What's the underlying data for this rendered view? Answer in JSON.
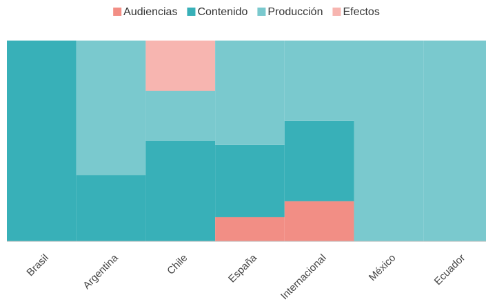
{
  "chart_data": {
    "type": "stacked_bar_100",
    "categories": [
      "Brasil",
      "Argentina",
      "Chile",
      "España",
      "Internacional",
      "México",
      "Ecuador"
    ],
    "series": [
      {
        "name": "Audiencias",
        "color": "#f28e85",
        "values": [
          0,
          0,
          0,
          12,
          20,
          0,
          0
        ]
      },
      {
        "name": "Contenido",
        "color": "#38b0b8",
        "values": [
          100,
          33,
          50,
          36,
          40,
          0,
          0
        ]
      },
      {
        "name": "Producción",
        "color": "#7ac9ce",
        "values": [
          0,
          67,
          25,
          52,
          40,
          100,
          100
        ]
      },
      {
        "name": "Efectos",
        "color": "#f7b5b0",
        "values": [
          0,
          0,
          25,
          0,
          0,
          0,
          0
        ]
      }
    ],
    "ylim": [
      0,
      100
    ],
    "legend": "top"
  }
}
